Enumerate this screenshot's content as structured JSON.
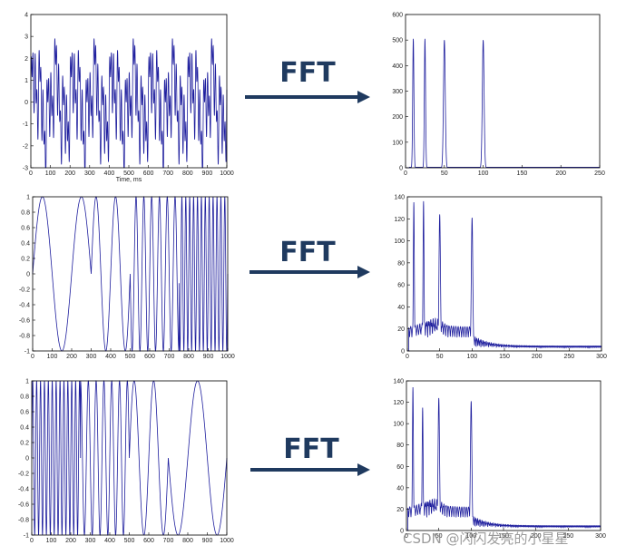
{
  "chart_data": [
    {
      "type": "line",
      "role": "time-domain",
      "signal": "sum of sinusoids (10, 25, 50, 100 Hz)",
      "xlabel": "Time, ms",
      "x_ticks": [
        0,
        100,
        200,
        300,
        400,
        500,
        600,
        700,
        800,
        900,
        1000
      ],
      "y_ticks": [
        -3,
        -2,
        -1,
        0,
        1,
        2,
        3,
        4
      ],
      "xlim": [
        0,
        1000
      ],
      "ylim": [
        -3,
        4
      ],
      "components_hz": [
        10,
        25,
        50,
        100
      ]
    },
    {
      "type": "line",
      "role": "frequency-domain",
      "xlabel": "",
      "x_ticks": [
        0,
        50,
        100,
        150,
        200,
        250
      ],
      "y_ticks": [
        0,
        100,
        200,
        300,
        400,
        500,
        600
      ],
      "xlim": [
        0,
        250
      ],
      "ylim": [
        0,
        600
      ],
      "peaks": [
        {
          "x": 10,
          "y": 505
        },
        {
          "x": 25,
          "y": 505
        },
        {
          "x": 50,
          "y": 500
        },
        {
          "x": 100,
          "y": 500
        }
      ]
    },
    {
      "type": "line",
      "role": "time-domain",
      "signal": "piecewise sinusoid, frequency increasing over time",
      "xlabel": "",
      "x_ticks": [
        0,
        100,
        200,
        300,
        400,
        500,
        600,
        700,
        800,
        900,
        1000
      ],
      "y_ticks": [
        -1,
        -0.8,
        -0.6,
        -0.4,
        -0.2,
        0,
        0.2,
        0.4,
        0.6,
        0.8,
        1
      ],
      "xlim": [
        0,
        1000
      ],
      "ylim": [
        -1,
        1
      ],
      "segments": [
        {
          "from": 0,
          "to": 300,
          "hz": 5
        },
        {
          "from": 300,
          "to": 500,
          "hz": 10
        },
        {
          "from": 500,
          "to": 750,
          "hz": 25
        },
        {
          "from": 750,
          "to": 1000,
          "hz": 50
        }
      ]
    },
    {
      "type": "line",
      "role": "frequency-domain",
      "xlabel": "",
      "x_ticks": [
        0,
        50,
        100,
        150,
        200,
        250,
        300
      ],
      "y_ticks": [
        0,
        20,
        40,
        60,
        80,
        100,
        120,
        140
      ],
      "xlim": [
        0,
        300
      ],
      "ylim": [
        0,
        140
      ],
      "peaks": [
        {
          "x": 10,
          "y": 135
        },
        {
          "x": 25,
          "y": 136
        },
        {
          "x": 50,
          "y": 124
        },
        {
          "x": 100,
          "y": 121
        }
      ]
    },
    {
      "type": "line",
      "role": "time-domain",
      "signal": "piecewise sinusoid, frequency decreasing over time",
      "xlabel": "",
      "x_ticks": [
        0,
        100,
        200,
        300,
        400,
        500,
        600,
        700,
        800,
        900,
        1000
      ],
      "y_ticks": [
        -1,
        -0.8,
        -0.6,
        -0.4,
        -0.2,
        0,
        0.2,
        0.4,
        0.6,
        0.8,
        1
      ],
      "xlim": [
        0,
        1000
      ],
      "ylim": [
        -1,
        1
      ],
      "segments": [
        {
          "from": 0,
          "to": 250,
          "hz": 50
        },
        {
          "from": 250,
          "to": 500,
          "hz": 25
        },
        {
          "from": 500,
          "to": 700,
          "hz": 10
        },
        {
          "from": 700,
          "to": 1000,
          "hz": 5
        }
      ]
    },
    {
      "type": "line",
      "role": "frequency-domain",
      "xlabel": "",
      "x_ticks": [
        0,
        50,
        100,
        150,
        200,
        250,
        300
      ],
      "y_ticks": [
        0,
        20,
        40,
        60,
        80,
        100,
        120,
        140
      ],
      "xlim": [
        0,
        300
      ],
      "ylim": [
        0,
        140
      ],
      "peaks": [
        {
          "x": 10,
          "y": 134
        },
        {
          "x": 25,
          "y": 115
        },
        {
          "x": 50,
          "y": 124
        },
        {
          "x": 100,
          "y": 121
        }
      ]
    }
  ],
  "arrows": [
    {
      "label": "FFT"
    },
    {
      "label": "FFT"
    },
    {
      "label": "FFT"
    }
  ],
  "watermark": "CSDN @闪闪发亮的小星星",
  "colors": {
    "line": "#1f1f9e",
    "arrow": "#1f3a5f",
    "axis": "#000000"
  }
}
